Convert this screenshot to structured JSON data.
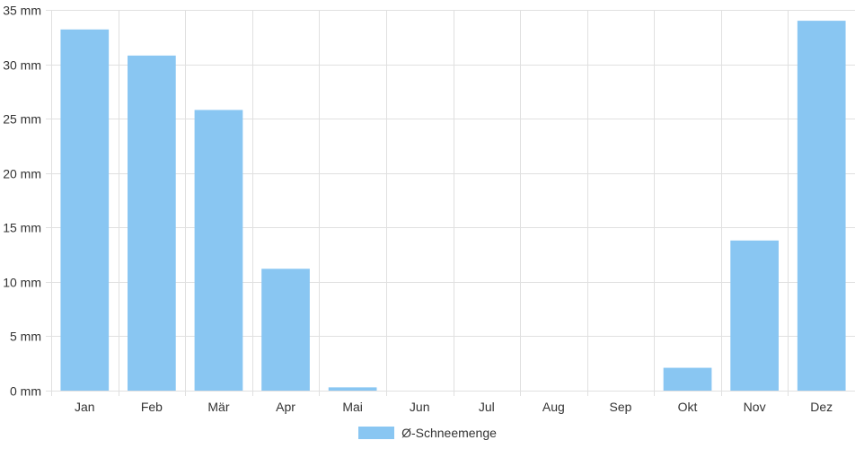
{
  "chart_data": {
    "type": "bar",
    "categories": [
      "Jan",
      "Feb",
      "Mär",
      "Apr",
      "Mai",
      "Jun",
      "Jul",
      "Aug",
      "Sep",
      "Okt",
      "Nov",
      "Dez"
    ],
    "series": [
      {
        "name": "Ø-Schneemenge",
        "values": [
          33.2,
          30.8,
          25.8,
          11.2,
          0.3,
          0,
          0,
          0,
          0,
          2.1,
          13.8,
          34.0
        ],
        "color": "#89c6f2"
      }
    ],
    "unit": "mm",
    "ylim": [
      0,
      35
    ],
    "yticks": [
      0,
      5,
      10,
      15,
      20,
      25,
      30,
      35
    ],
    "ytick_labels": [
      "0 mm",
      "5 mm",
      "10 mm",
      "15 mm",
      "20 mm",
      "25 mm",
      "30 mm",
      "35 mm"
    ],
    "grid": true,
    "legend_position": "bottom-center"
  }
}
